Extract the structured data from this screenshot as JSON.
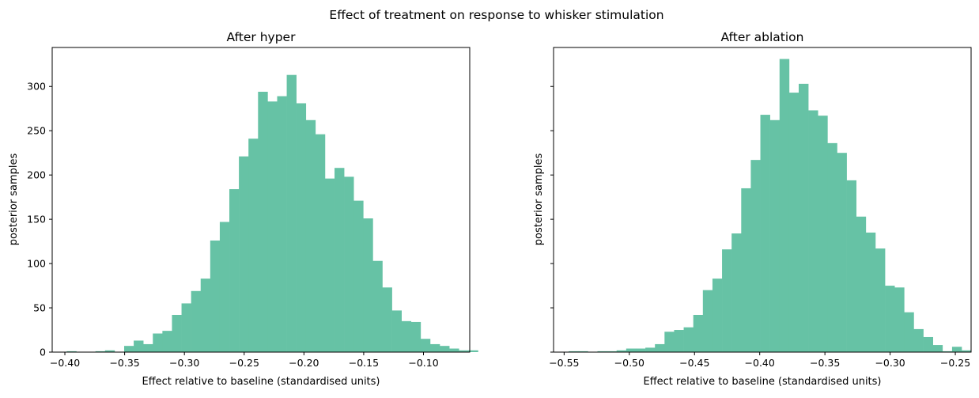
{
  "suptitle": "Effect of treatment on response to whisker stimulation",
  "colors": {
    "bar": "#66c2a5",
    "axis": "#000000"
  },
  "chart_data": [
    {
      "type": "bar",
      "title": "After hyper",
      "xlabel": "Effect relative to baseline (standardised units)",
      "ylabel": "posterior samples",
      "xlim": [
        -0.4106,
        -0.0613
      ],
      "ylim": [
        0,
        344
      ],
      "xticks": [
        -0.4,
        -0.35,
        -0.3,
        -0.25,
        -0.2,
        -0.15,
        -0.1
      ],
      "xtick_labels": [
        "−0.40",
        "−0.35",
        "−0.30",
        "−0.25",
        "−0.20",
        "−0.15",
        "−0.10"
      ],
      "yticks": [
        0,
        50,
        100,
        150,
        200,
        250,
        300
      ],
      "ytick_labels": [
        "0",
        "50",
        "100",
        "150",
        "200",
        "250",
        "300"
      ],
      "show_ytick_labels": true,
      "bin_start": -0.3984,
      "bin_width": 0.008,
      "values": [
        1,
        0,
        0,
        1,
        2,
        0,
        7,
        13,
        9,
        21,
        24,
        42,
        55,
        69,
        83,
        126,
        147,
        184,
        221,
        241,
        294,
        283,
        289,
        313,
        281,
        262,
        246,
        196,
        208,
        198,
        171,
        151,
        103,
        73,
        47,
        35,
        34,
        15,
        9,
        7,
        4,
        2,
        2
      ],
      "grid": false,
      "legend": "none"
    },
    {
      "type": "bar",
      "title": "After ablation",
      "xlabel": "Effect relative to baseline (standardised units)",
      "ylabel": "posterior samples",
      "xlim": [
        -0.5581,
        -0.2379
      ],
      "ylim": [
        0,
        344
      ],
      "xticks": [
        -0.55,
        -0.5,
        -0.45,
        -0.4,
        -0.35,
        -0.3,
        -0.25
      ],
      "xtick_labels": [
        "−0.55",
        "−0.50",
        "−0.45",
        "−0.40",
        "−0.35",
        "−0.30",
        "−0.25"
      ],
      "yticks": [
        0,
        50,
        100,
        150,
        200,
        250,
        300
      ],
      "ytick_labels": [
        "0",
        "50",
        "100",
        "150",
        "200",
        "250",
        "300"
      ],
      "show_ytick_labels": false,
      "bin_start": -0.5465,
      "bin_width": 0.00735,
      "values": [
        1,
        1,
        0,
        1,
        1,
        2,
        4,
        4,
        5,
        9,
        23,
        25,
        28,
        42,
        70,
        83,
        116,
        134,
        185,
        217,
        268,
        262,
        331,
        293,
        303,
        273,
        267,
        236,
        225,
        194,
        153,
        135,
        117,
        75,
        73,
        45,
        26,
        17,
        8,
        1,
        6,
        2
      ],
      "grid": false,
      "legend": "none"
    }
  ]
}
